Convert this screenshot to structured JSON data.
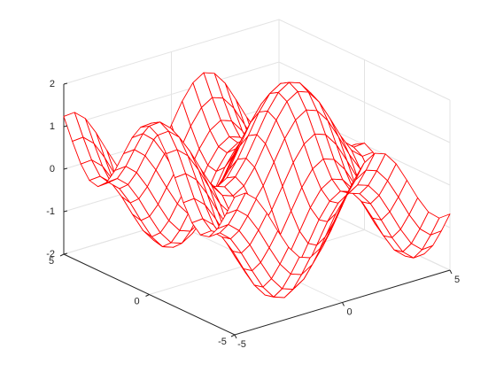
{
  "chart_data": {
    "type": "mesh",
    "color": "#ff0000",
    "grid": true,
    "x": [
      -5,
      -4.5,
      -4,
      -3.5,
      -3,
      -2.5,
      -2,
      -1.5,
      -1,
      -0.5,
      0,
      0.5,
      1,
      1.5,
      2,
      2.5,
      3,
      3.5,
      4,
      4.5,
      5
    ],
    "y": [
      -5,
      -4.5,
      -4,
      -3.5,
      -3,
      -2.5,
      -2,
      -1.5,
      -1,
      -0.5,
      0,
      0.5,
      1,
      1.5,
      2,
      2.5,
      3,
      3.5,
      4,
      4.5,
      5
    ],
    "z": [
      [
        1.24,
        1.26,
        1.04,
        0.63,
        0.14,
        -0.32,
        -0.63,
        -0.72,
        -0.56,
        -0.2,
        0.28,
        0.76,
        1.12,
        1.28,
        1.19,
        0.88,
        0.42,
        -0.07,
        -0.48,
        -0.7,
        -0.68
      ],
      [
        0.75,
        0.77,
        0.55,
        0.14,
        -0.35,
        -0.81,
        -1.12,
        -1.21,
        -1.05,
        -0.69,
        -0.21,
        0.27,
        0.63,
        0.79,
        0.7,
        0.39,
        -0.07,
        -0.56,
        -0.97,
        -1.19,
        -1.17
      ],
      [
        0.31,
        0.33,
        0.11,
        -0.3,
        -0.79,
        -1.25,
        -1.56,
        -1.65,
        -1.49,
        -1.13,
        -0.65,
        -0.17,
        0.19,
        0.35,
        0.26,
        -0.05,
        -0.51,
        -1,
        -1.41,
        -1.63,
        -1.61
      ],
      [
        0.02,
        0.04,
        -0.18,
        -0.59,
        -1.08,
        -1.54,
        -1.85,
        -1.94,
        -1.78,
        -1.42,
        -0.94,
        -0.46,
        -0.1,
        0.06,
        -0.03,
        -0.34,
        -0.8,
        -1.29,
        -1.7,
        -1.92,
        -1.9
      ],
      [
        -0.03,
        -0.01,
        -0.23,
        -0.64,
        -1.13,
        -1.59,
        -1.9,
        -1.99,
        -1.83,
        -1.47,
        -0.99,
        -0.51,
        -0.15,
        0.01,
        -0.08,
        -0.39,
        -0.85,
        -1.34,
        -1.75,
        -1.97,
        -1.95
      ],
      [
        0.16,
        0.18,
        -0.04,
        -0.45,
        -0.94,
        -1.4,
        -1.71,
        -1.8,
        -1.64,
        -1.28,
        -0.8,
        -0.32,
        0.04,
        0.2,
        0.11,
        -0.2,
        -0.66,
        -1.15,
        -1.56,
        -1.78,
        -1.76
      ],
      [
        0.54,
        0.56,
        0.34,
        -0.07,
        -0.56,
        -1.02,
        -1.33,
        -1.42,
        -1.26,
        -0.9,
        -0.42,
        0.06,
        0.42,
        0.58,
        0.49,
        0.18,
        -0.28,
        -0.77,
        -1.18,
        -1.4,
        -1.38
      ],
      [
        1.03,
        1.05,
        0.83,
        0.42,
        -0.07,
        -0.53,
        -0.84,
        -0.93,
        -0.77,
        -0.41,
        0.07,
        0.55,
        0.91,
        1.07,
        0.98,
        0.67,
        0.21,
        -0.28,
        -0.69,
        -0.91,
        -0.89
      ],
      [
        1.5,
        1.52,
        1.3,
        0.89,
        0.4,
        -0.06,
        -0.37,
        -0.46,
        -0.3,
        0.06,
        0.54,
        1.02,
        1.38,
        1.54,
        1.45,
        1.14,
        0.68,
        0.19,
        -0.22,
        -0.44,
        -0.42
      ],
      [
        1.84,
        1.86,
        1.64,
        1.23,
        0.74,
        0.28,
        -0.03,
        -0.12,
        0.04,
        0.4,
        0.88,
        1.36,
        1.72,
        1.88,
        1.79,
        1.48,
        1.02,
        0.53,
        0.12,
        -0.1,
        -0.08
      ],
      [
        1.96,
        1.98,
        1.76,
        1.35,
        0.86,
        0.4,
        0.09,
        0,
        0.16,
        0.52,
        1,
        1.48,
        1.84,
        2,
        1.91,
        1.6,
        1.14,
        0.65,
        0.24,
        0.02,
        0.04
      ],
      [
        1.84,
        1.86,
        1.64,
        1.23,
        0.74,
        0.28,
        -0.03,
        -0.12,
        0.04,
        0.4,
        0.88,
        1.36,
        1.72,
        1.88,
        1.79,
        1.48,
        1.02,
        0.53,
        0.12,
        -0.1,
        -0.08
      ],
      [
        1.5,
        1.52,
        1.3,
        0.89,
        0.4,
        -0.06,
        -0.37,
        -0.46,
        -0.3,
        0.06,
        0.54,
        1.02,
        1.38,
        1.54,
        1.45,
        1.14,
        0.68,
        0.19,
        -0.22,
        -0.44,
        -0.42
      ],
      [
        1.03,
        1.05,
        0.83,
        0.42,
        -0.07,
        -0.53,
        -0.84,
        -0.93,
        -0.77,
        -0.41,
        0.07,
        0.55,
        0.91,
        1.07,
        0.98,
        0.67,
        0.21,
        -0.28,
        -0.69,
        -0.91,
        -0.89
      ],
      [
        0.54,
        0.56,
        0.34,
        -0.07,
        -0.56,
        -1.02,
        -1.33,
        -1.42,
        -1.26,
        -0.9,
        -0.42,
        0.06,
        0.42,
        0.58,
        0.49,
        0.18,
        -0.28,
        -0.77,
        -1.18,
        -1.4,
        -1.38
      ],
      [
        0.16,
        0.18,
        -0.04,
        -0.45,
        -0.94,
        -1.4,
        -1.71,
        -1.8,
        -1.64,
        -1.28,
        -0.8,
        -0.32,
        0.04,
        0.2,
        0.11,
        -0.2,
        -0.66,
        -1.15,
        -1.56,
        -1.78,
        -1.76
      ],
      [
        -0.03,
        -0.01,
        -0.23,
        -0.64,
        -1.13,
        -1.59,
        -1.9,
        -1.99,
        -1.83,
        -1.47,
        -0.99,
        -0.51,
        -0.15,
        0.01,
        -0.08,
        -0.39,
        -0.85,
        -1.34,
        -1.75,
        -1.97,
        -1.95
      ],
      [
        0.02,
        0.04,
        -0.18,
        -0.59,
        -1.08,
        -1.54,
        -1.85,
        -1.94,
        -1.78,
        -1.42,
        -0.94,
        -0.46,
        -0.1,
        0.06,
        -0.03,
        -0.34,
        -0.8,
        -1.29,
        -1.7,
        -1.92,
        -1.9
      ],
      [
        0.31,
        0.33,
        0.11,
        -0.3,
        -0.79,
        -1.25,
        -1.56,
        -1.65,
        -1.49,
        -1.13,
        -0.65,
        -0.17,
        0.19,
        0.35,
        0.26,
        -0.05,
        -0.51,
        -1,
        -1.41,
        -1.63,
        -1.61
      ],
      [
        0.75,
        0.77,
        0.55,
        0.14,
        -0.35,
        -0.81,
        -1.12,
        -1.21,
        -1.05,
        -0.69,
        -0.21,
        0.27,
        0.63,
        0.79,
        0.7,
        0.39,
        -0.07,
        -0.56,
        -0.97,
        -1.19,
        -1.17
      ],
      [
        1.24,
        1.26,
        1.04,
        0.63,
        0.14,
        -0.32,
        -0.63,
        -0.72,
        -0.56,
        -0.2,
        0.28,
        0.76,
        1.12,
        1.28,
        1.19,
        0.88,
        0.42,
        -0.07,
        -0.48,
        -0.7,
        -0.68
      ]
    ],
    "xlim": [
      -5,
      5
    ],
    "ylim": [
      -5,
      5
    ],
    "zlim": [
      -2,
      2
    ],
    "xticks": [
      -5,
      0,
      5
    ],
    "yticks": [
      -5,
      0,
      5
    ],
    "zticks": [
      -2,
      -1,
      0,
      1,
      2
    ]
  }
}
